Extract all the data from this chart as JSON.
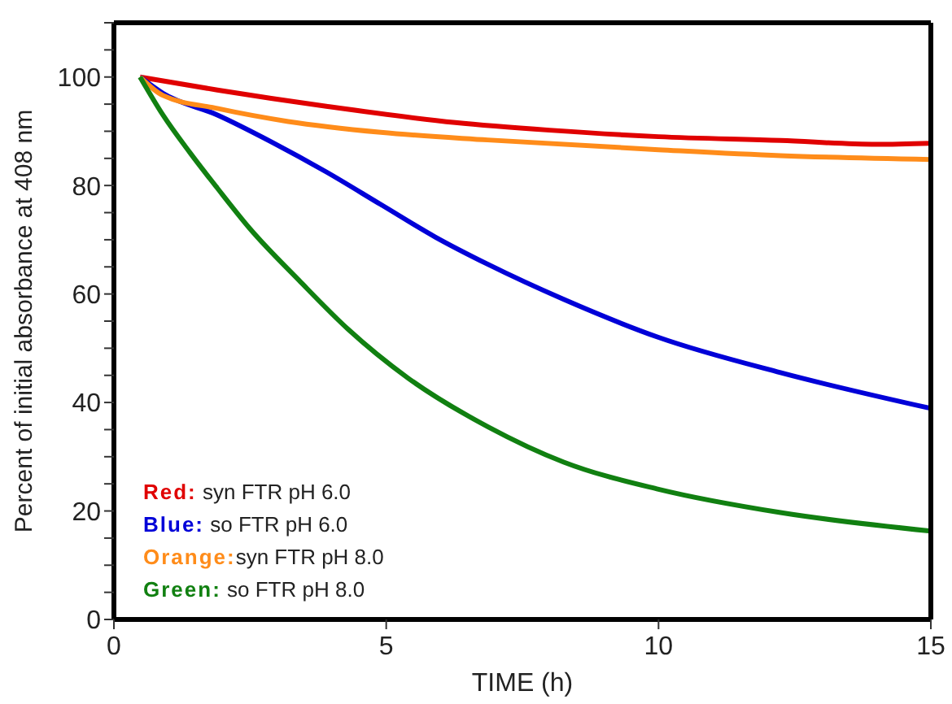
{
  "chart_data": {
    "type": "line",
    "xlabel": "TIME (h)",
    "ylabel": "Percent of initial absorbance at 408 nm",
    "xlim": [
      0,
      15
    ],
    "xticks": [
      0,
      5,
      10,
      15
    ],
    "ylim": [
      0,
      110
    ],
    "yticks": [
      0,
      {
        "value": 5,
        "label": null
      },
      {
        "value": 10,
        "label": null
      },
      {
        "value": 15,
        "label": null
      },
      20,
      {
        "value": 25,
        "label": null
      },
      {
        "value": 30,
        "label": null
      },
      {
        "value": 35,
        "label": null
      },
      40,
      {
        "value": 45,
        "label": null
      },
      {
        "value": 50,
        "label": null
      },
      {
        "value": 55,
        "label": null
      },
      60,
      {
        "value": 65,
        "label": null
      },
      {
        "value": 70,
        "label": null
      },
      {
        "value": 75,
        "label": null
      },
      80,
      {
        "value": 85,
        "label": null
      },
      {
        "value": 90,
        "label": null
      },
      {
        "value": 95,
        "label": null
      },
      100,
      {
        "value": 105,
        "label": null
      },
      {
        "value": 110,
        "label": null
      }
    ],
    "grid": false,
    "legend": "bottom left",
    "marker": "none",
    "line_style": "solid",
    "series": [
      {
        "name": "Red: syn FTR pH 6.0",
        "color": "#e00000",
        "x": [
          0.48,
          1.9,
          3.9,
          6.27,
          8,
          10,
          12.24,
          14,
          15
        ],
        "values": [
          100,
          97.6,
          94.6,
          91.6,
          90.2,
          89,
          88.3,
          87.6,
          87.8
        ]
      },
      {
        "name": "Blue: so FTR pH 6.0",
        "color": "#0000d8",
        "x": [
          0.48,
          0.9,
          1.9,
          2.9,
          3.9,
          4.9,
          5.9,
          6.86,
          8.26,
          10,
          12.24,
          15
        ],
        "values": [
          100,
          97,
          93,
          88,
          82.5,
          76.5,
          70.5,
          65.5,
          59,
          52,
          45.5,
          38.9
        ]
      },
      {
        "name": "Orange:syn FTR pH 8.0",
        "color": "#ff8c1a",
        "x": [
          0.48,
          0.9,
          1.9,
          3.2,
          4.9,
          6.86,
          10,
          12.24,
          15
        ],
        "values": [
          100,
          96.6,
          94.2,
          91.8,
          89.8,
          88.4,
          86.6,
          85.5,
          84.8
        ]
      },
      {
        "name": "Green: so FTR pH 8.0",
        "color": "#118011",
        "x": [
          0.48,
          0.9,
          1.4,
          1.9,
          2.5,
          3.4,
          4.3,
          5.4,
          6.87,
          8.26,
          10,
          12.24,
          15
        ],
        "values": [
          100,
          93,
          86,
          79.5,
          72,
          62.5,
          53.5,
          44.5,
          35.5,
          29,
          24,
          19.7,
          16.3
        ]
      }
    ]
  }
}
